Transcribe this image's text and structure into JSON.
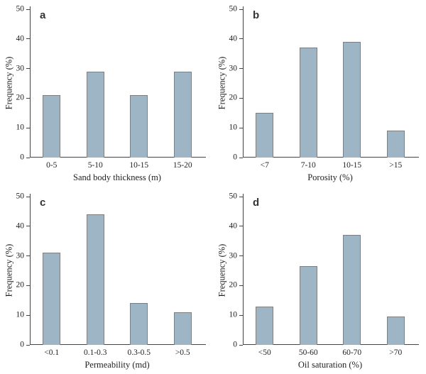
{
  "figure": {
    "background": "#ffffff",
    "layout": "2x2-grid"
  },
  "colors": {
    "bar_fill": "#9eb5c6",
    "bar_border": "#7e7e7e",
    "axis": "#444444",
    "text": "#222222"
  },
  "chart_data": [
    {
      "type": "bar",
      "panel_label": "a",
      "categories": [
        "0-5",
        "5-10",
        "10-15",
        "15-20"
      ],
      "values": [
        21,
        29,
        21,
        29
      ],
      "title": "",
      "xlabel": "Sand body thickness (m)",
      "ylabel": "Frequency (%)",
      "ylim": [
        0,
        50
      ],
      "yticks": [
        0,
        10,
        20,
        30,
        40,
        50
      ],
      "grid": false
    },
    {
      "type": "bar",
      "panel_label": "b",
      "categories": [
        "<7",
        "7-10",
        "10-15",
        ">15"
      ],
      "values": [
        15,
        37,
        39,
        9
      ],
      "title": "",
      "xlabel": "Porosity (%)",
      "ylabel": "Frequency (%)",
      "ylim": [
        0,
        50
      ],
      "yticks": [
        0,
        10,
        20,
        30,
        40,
        50
      ],
      "grid": false
    },
    {
      "type": "bar",
      "panel_label": "c",
      "categories": [
        "<0.1",
        "0.1-0.3",
        "0.3-0.5",
        ">0.5"
      ],
      "values": [
        31,
        44,
        14,
        11
      ],
      "title": "",
      "xlabel": "Permeability (md)",
      "ylabel": "Frequency (%)",
      "ylim": [
        0,
        50
      ],
      "yticks": [
        0,
        10,
        20,
        30,
        40,
        50
      ],
      "grid": false
    },
    {
      "type": "bar",
      "panel_label": "d",
      "categories": [
        "<50",
        "50-60",
        "60-70",
        ">70"
      ],
      "values": [
        13,
        26.5,
        37,
        9.5
      ],
      "title": "",
      "xlabel": "Oil saturation (%)",
      "ylabel": "Frequency (%)",
      "ylim": [
        0,
        50
      ],
      "yticks": [
        0,
        10,
        20,
        30,
        40,
        50
      ],
      "grid": false
    }
  ]
}
